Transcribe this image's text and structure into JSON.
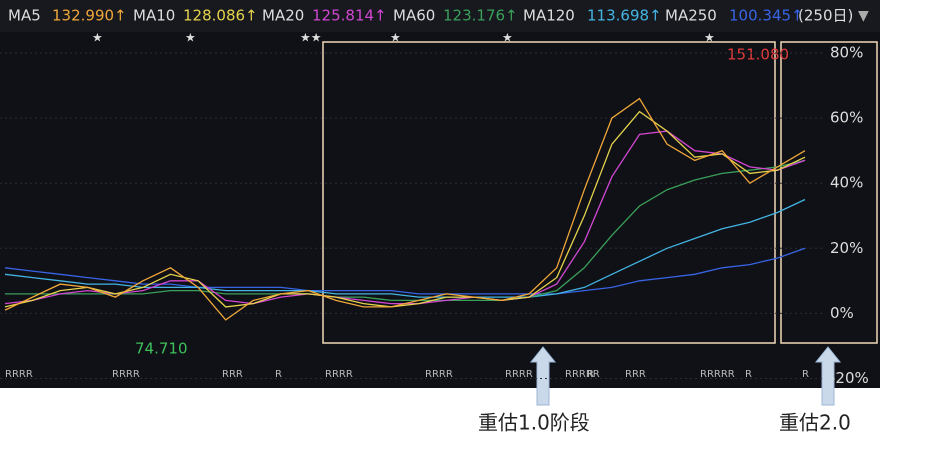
{
  "chart_data": {
    "type": "line",
    "period_label": "(250日)",
    "series": [
      {
        "name": "MA5",
        "legend_value": "132.990↑",
        "color": "#f0a73a",
        "values": [
          1,
          5,
          9,
          8,
          5,
          10,
          14,
          8,
          -2,
          4,
          6,
          7,
          4,
          2,
          2,
          4,
          6,
          5,
          4,
          6,
          14,
          38,
          60,
          66,
          52,
          47,
          50,
          40,
          45,
          50
        ]
      },
      {
        "name": "MA10",
        "legend_value": "128.086↑",
        "color": "#e6d34c",
        "values": [
          2,
          4,
          7,
          8,
          6,
          8,
          12,
          10,
          2,
          3,
          6,
          6,
          5,
          3,
          2,
          3,
          5,
          5,
          4,
          5,
          11,
          30,
          52,
          62,
          56,
          48,
          49,
          43,
          44,
          48
        ]
      },
      {
        "name": "MA20",
        "legend_value": "125.814↑",
        "color": "#d247d2",
        "values": [
          3,
          4,
          6,
          7,
          6,
          7,
          10,
          10,
          4,
          3,
          5,
          6,
          5,
          4,
          3,
          3,
          4,
          5,
          4,
          5,
          9,
          22,
          42,
          55,
          56,
          50,
          49,
          45,
          44,
          47
        ]
      },
      {
        "name": "MA60",
        "legend_value": "123.176↑",
        "color": "#3aa05a",
        "values": [
          6,
          6,
          6,
          6,
          6,
          6,
          7,
          7,
          6,
          6,
          6,
          6,
          5,
          5,
          4,
          4,
          4,
          4,
          4,
          5,
          7,
          14,
          24,
          33,
          38,
          41,
          43,
          44,
          45,
          47
        ]
      },
      {
        "name": "MA120",
        "legend_value": "113.698↑",
        "color": "#43b4e3",
        "values": [
          12,
          11,
          10,
          9,
          9,
          8,
          8,
          8,
          7,
          7,
          7,
          7,
          6,
          6,
          6,
          5,
          5,
          5,
          5,
          5,
          6,
          8,
          12,
          16,
          20,
          23,
          26,
          28,
          31,
          35
        ]
      },
      {
        "name": "MA250",
        "legend_value": "100.345↑",
        "color": "#3864e6",
        "values": [
          14,
          13,
          12,
          11,
          10,
          9,
          9,
          8,
          8,
          8,
          8,
          7,
          7,
          7,
          7,
          6,
          6,
          6,
          6,
          6,
          6,
          7,
          8,
          10,
          11,
          12,
          14,
          15,
          17,
          20
        ]
      }
    ],
    "ylim": [
      -22,
      84
    ],
    "yticks": [
      {
        "value": 80,
        "label": "80%"
      },
      {
        "value": 60,
        "label": "60%"
      },
      {
        "value": 40,
        "label": "40%"
      },
      {
        "value": 20,
        "label": "20%"
      },
      {
        "value": 0,
        "label": "0%"
      },
      {
        "value": -20,
        "label": "-20%"
      }
    ],
    "grid": true,
    "annotations": {
      "high": "151.080",
      "low": "74.710",
      "phase1": "重估1.0阶段",
      "phase2": "重估2.0"
    },
    "markers": [
      "RRRR",
      "RRRR",
      "RRR",
      "R",
      "RRRR",
      "RRRR",
      "RRRR",
      "RRRRR",
      "R",
      "RRR",
      "RRRRR",
      "R",
      "R"
    ]
  }
}
